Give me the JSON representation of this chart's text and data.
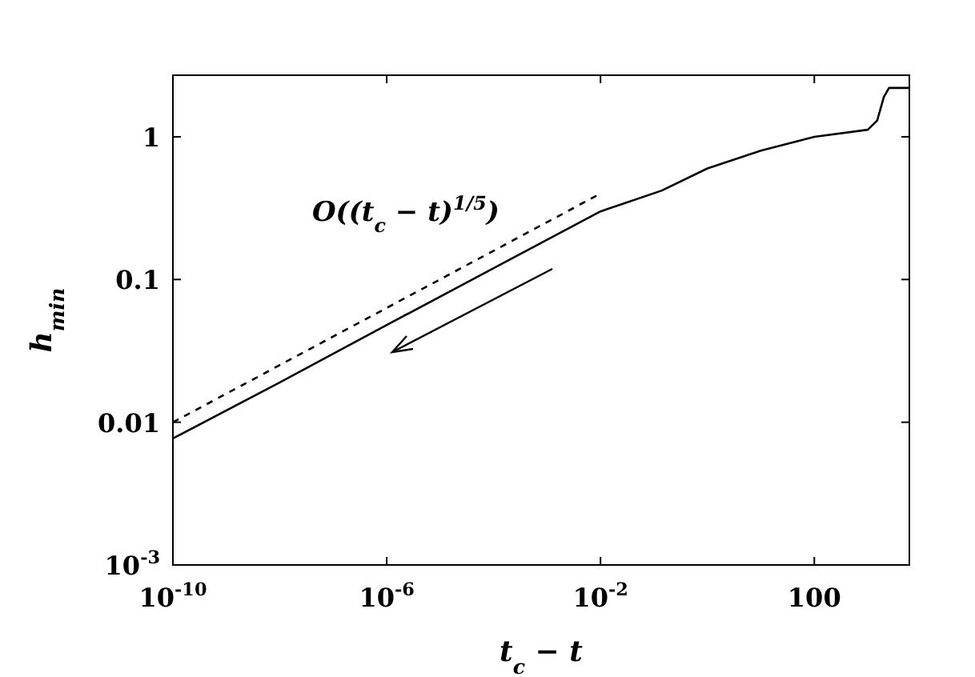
{
  "chart_data": {
    "type": "line",
    "xlabel": "t$_{c}$ − t",
    "ylabel": "h$_{min}$",
    "log": "xy",
    "grid": false,
    "xlim": [
      1e-10,
      6000
    ],
    "ylim": [
      0.001,
      2.7
    ],
    "xticks": [
      {
        "value": 1e-10,
        "label": "10$^{-10}$"
      },
      {
        "value": 1e-06,
        "label": "10$^{-6}$"
      },
      {
        "value": 0.01,
        "label": "10$^{-2}$"
      },
      100
    ],
    "yticks": [
      {
        "value": 0.001,
        "label": "10$^{-3}$"
      },
      0.01,
      0.1,
      1
    ],
    "annotations": [
      "O((t$_{c}$ − t)$^{1/5}$)"
    ],
    "series": [
      {
        "color": "#000000",
        "line_style": "solid",
        "x": [
          1e-10,
          1e-08,
          1e-06,
          0.0001,
          0.01,
          0.14,
          1,
          10,
          100,
          1000,
          1500,
          2000,
          2500,
          6000
        ],
        "values": [
          0.0077,
          0.019,
          0.048,
          0.12,
          0.3,
          0.42,
          0.6,
          0.8,
          1.0,
          1.12,
          1.3,
          1.9,
          2.2,
          2.2
        ]
      },
      {
        "color": "#000000",
        "line_style": "dashed",
        "x": [
          1e-10,
          0.01
        ],
        "values": [
          0.01,
          0.4
        ]
      }
    ]
  }
}
